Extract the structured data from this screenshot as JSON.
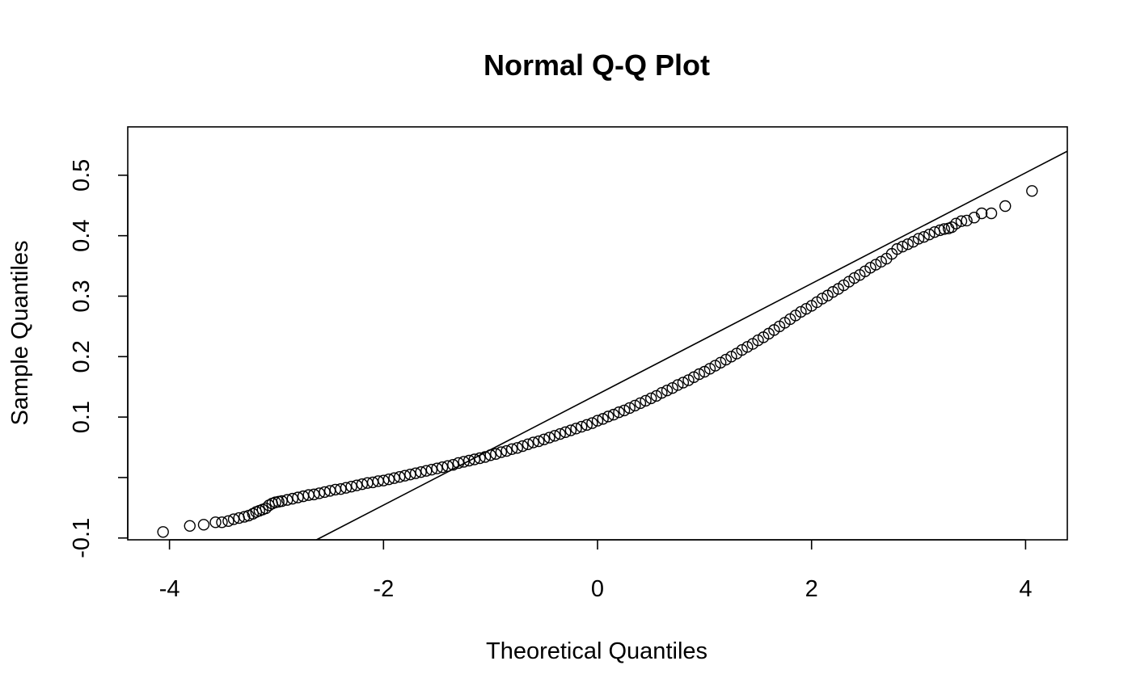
{
  "chart_data": {
    "type": "scatter",
    "title": "Normal Q-Q Plot",
    "xlabel": "Theoretical Quantiles",
    "ylabel": "Sample Quantiles",
    "xlim": [
      -4.39,
      4.39
    ],
    "ylim": [
      -0.103,
      0.58
    ],
    "x_ticks": [
      -4,
      -2,
      0,
      2,
      4
    ],
    "x_tick_labels": [
      "-4",
      "-2",
      "0",
      "2",
      "4"
    ],
    "y_ticks": [
      -0.1,
      0.0,
      0.1,
      0.2,
      0.3,
      0.4,
      0.5
    ],
    "y_tick_labels": [
      "-0.1",
      "",
      "0.1",
      "0.2",
      "0.3",
      "0.4",
      "0.5"
    ],
    "reference_line": {
      "slope": 0.0916,
      "intercept": 0.1376
    },
    "grid": false,
    "legend": "none",
    "marker": "open-circle",
    "color": "#000000",
    "series": [
      {
        "points": [
          [
            -4.06,
            -0.09
          ],
          [
            -3.81,
            -0.08
          ],
          [
            -3.68,
            -0.078
          ],
          [
            -3.57,
            -0.074
          ],
          [
            -3.51,
            -0.074
          ],
          [
            -3.45,
            -0.072
          ],
          [
            -3.4,
            -0.069
          ],
          [
            -3.35,
            -0.067
          ],
          [
            -3.3,
            -0.065
          ],
          [
            -3.26,
            -0.063
          ],
          [
            -3.22,
            -0.06
          ],
          [
            -3.19,
            -0.057
          ],
          [
            -3.16,
            -0.055
          ],
          [
            -3.13,
            -0.053
          ],
          [
            -3.1,
            -0.051
          ],
          [
            -3.07,
            -0.046
          ],
          [
            -3.04,
            -0.043
          ],
          [
            -3.01,
            -0.041
          ],
          [
            -2.98,
            -0.04
          ],
          [
            -2.95,
            -0.039
          ],
          [
            -2.9,
            -0.037
          ],
          [
            -2.85,
            -0.035
          ],
          [
            -2.8,
            -0.033
          ],
          [
            -2.75,
            -0.031
          ],
          [
            -2.7,
            -0.029
          ],
          [
            -2.65,
            -0.028
          ],
          [
            -2.6,
            -0.026
          ],
          [
            -2.55,
            -0.024
          ],
          [
            -2.5,
            -0.022
          ],
          [
            -2.45,
            -0.02
          ],
          [
            -2.4,
            -0.019
          ],
          [
            -2.35,
            -0.017
          ],
          [
            -2.3,
            -0.015
          ],
          [
            -2.25,
            -0.013
          ],
          [
            -2.2,
            -0.011
          ],
          [
            -2.15,
            -0.009
          ],
          [
            -2.1,
            -0.008
          ],
          [
            -2.05,
            -0.006
          ],
          [
            -2.0,
            -0.005
          ],
          [
            -1.95,
            -0.003
          ],
          [
            -1.9,
            -0.001
          ],
          [
            -1.85,
            0.001
          ],
          [
            -1.8,
            0.003
          ],
          [
            -1.75,
            0.005
          ],
          [
            -1.7,
            0.007
          ],
          [
            -1.65,
            0.009
          ],
          [
            -1.6,
            0.011
          ],
          [
            -1.55,
            0.013
          ],
          [
            -1.5,
            0.015
          ],
          [
            -1.45,
            0.017
          ],
          [
            -1.4,
            0.019
          ],
          [
            -1.35,
            0.021
          ],
          [
            -1.3,
            0.024
          ],
          [
            -1.25,
            0.026
          ],
          [
            -1.2,
            0.028
          ],
          [
            -1.15,
            0.03
          ],
          [
            -1.1,
            0.032
          ],
          [
            -1.05,
            0.034
          ],
          [
            -1.0,
            0.037
          ],
          [
            -0.95,
            0.039
          ],
          [
            -0.9,
            0.042
          ],
          [
            -0.85,
            0.044
          ],
          [
            -0.8,
            0.047
          ],
          [
            -0.75,
            0.049
          ],
          [
            -0.7,
            0.052
          ],
          [
            -0.65,
            0.055
          ],
          [
            -0.6,
            0.058
          ],
          [
            -0.55,
            0.06
          ],
          [
            -0.5,
            0.063
          ],
          [
            -0.45,
            0.066
          ],
          [
            -0.4,
            0.069
          ],
          [
            -0.35,
            0.072
          ],
          [
            -0.3,
            0.075
          ],
          [
            -0.25,
            0.078
          ],
          [
            -0.2,
            0.081
          ],
          [
            -0.15,
            0.084
          ],
          [
            -0.1,
            0.087
          ],
          [
            -0.05,
            0.09
          ],
          [
            0.0,
            0.094
          ],
          [
            0.05,
            0.097
          ],
          [
            0.1,
            0.101
          ],
          [
            0.15,
            0.104
          ],
          [
            0.2,
            0.108
          ],
          [
            0.25,
            0.111
          ],
          [
            0.3,
            0.115
          ],
          [
            0.35,
            0.119
          ],
          [
            0.4,
            0.123
          ],
          [
            0.45,
            0.127
          ],
          [
            0.5,
            0.131
          ],
          [
            0.55,
            0.135
          ],
          [
            0.6,
            0.14
          ],
          [
            0.65,
            0.144
          ],
          [
            0.7,
            0.148
          ],
          [
            0.75,
            0.153
          ],
          [
            0.8,
            0.157
          ],
          [
            0.85,
            0.161
          ],
          [
            0.9,
            0.166
          ],
          [
            0.95,
            0.171
          ],
          [
            1.0,
            0.175
          ],
          [
            1.05,
            0.18
          ],
          [
            1.1,
            0.185
          ],
          [
            1.15,
            0.19
          ],
          [
            1.2,
            0.195
          ],
          [
            1.25,
            0.2
          ],
          [
            1.3,
            0.205
          ],
          [
            1.35,
            0.211
          ],
          [
            1.4,
            0.216
          ],
          [
            1.45,
            0.221
          ],
          [
            1.5,
            0.227
          ],
          [
            1.55,
            0.232
          ],
          [
            1.6,
            0.238
          ],
          [
            1.65,
            0.244
          ],
          [
            1.7,
            0.25
          ],
          [
            1.75,
            0.256
          ],
          [
            1.8,
            0.262
          ],
          [
            1.85,
            0.268
          ],
          [
            1.9,
            0.274
          ],
          [
            1.95,
            0.279
          ],
          [
            2.0,
            0.284
          ],
          [
            2.05,
            0.29
          ],
          [
            2.1,
            0.296
          ],
          [
            2.15,
            0.301
          ],
          [
            2.2,
            0.307
          ],
          [
            2.25,
            0.312
          ],
          [
            2.3,
            0.318
          ],
          [
            2.35,
            0.324
          ],
          [
            2.4,
            0.33
          ],
          [
            2.45,
            0.335
          ],
          [
            2.5,
            0.341
          ],
          [
            2.55,
            0.347
          ],
          [
            2.6,
            0.352
          ],
          [
            2.65,
            0.357
          ],
          [
            2.7,
            0.362
          ],
          [
            2.75,
            0.37
          ],
          [
            2.8,
            0.378
          ],
          [
            2.85,
            0.382
          ],
          [
            2.9,
            0.386
          ],
          [
            2.95,
            0.39
          ],
          [
            3.0,
            0.395
          ],
          [
            3.05,
            0.398
          ],
          [
            3.1,
            0.402
          ],
          [
            3.15,
            0.406
          ],
          [
            3.2,
            0.409
          ],
          [
            3.24,
            0.411
          ],
          [
            3.28,
            0.412
          ],
          [
            3.31,
            0.414
          ],
          [
            3.35,
            0.42
          ],
          [
            3.4,
            0.424
          ],
          [
            3.45,
            0.425
          ],
          [
            3.52,
            0.43
          ],
          [
            3.59,
            0.437
          ],
          [
            3.68,
            0.437
          ],
          [
            3.81,
            0.449
          ],
          [
            4.06,
            0.474
          ]
        ]
      }
    ]
  }
}
